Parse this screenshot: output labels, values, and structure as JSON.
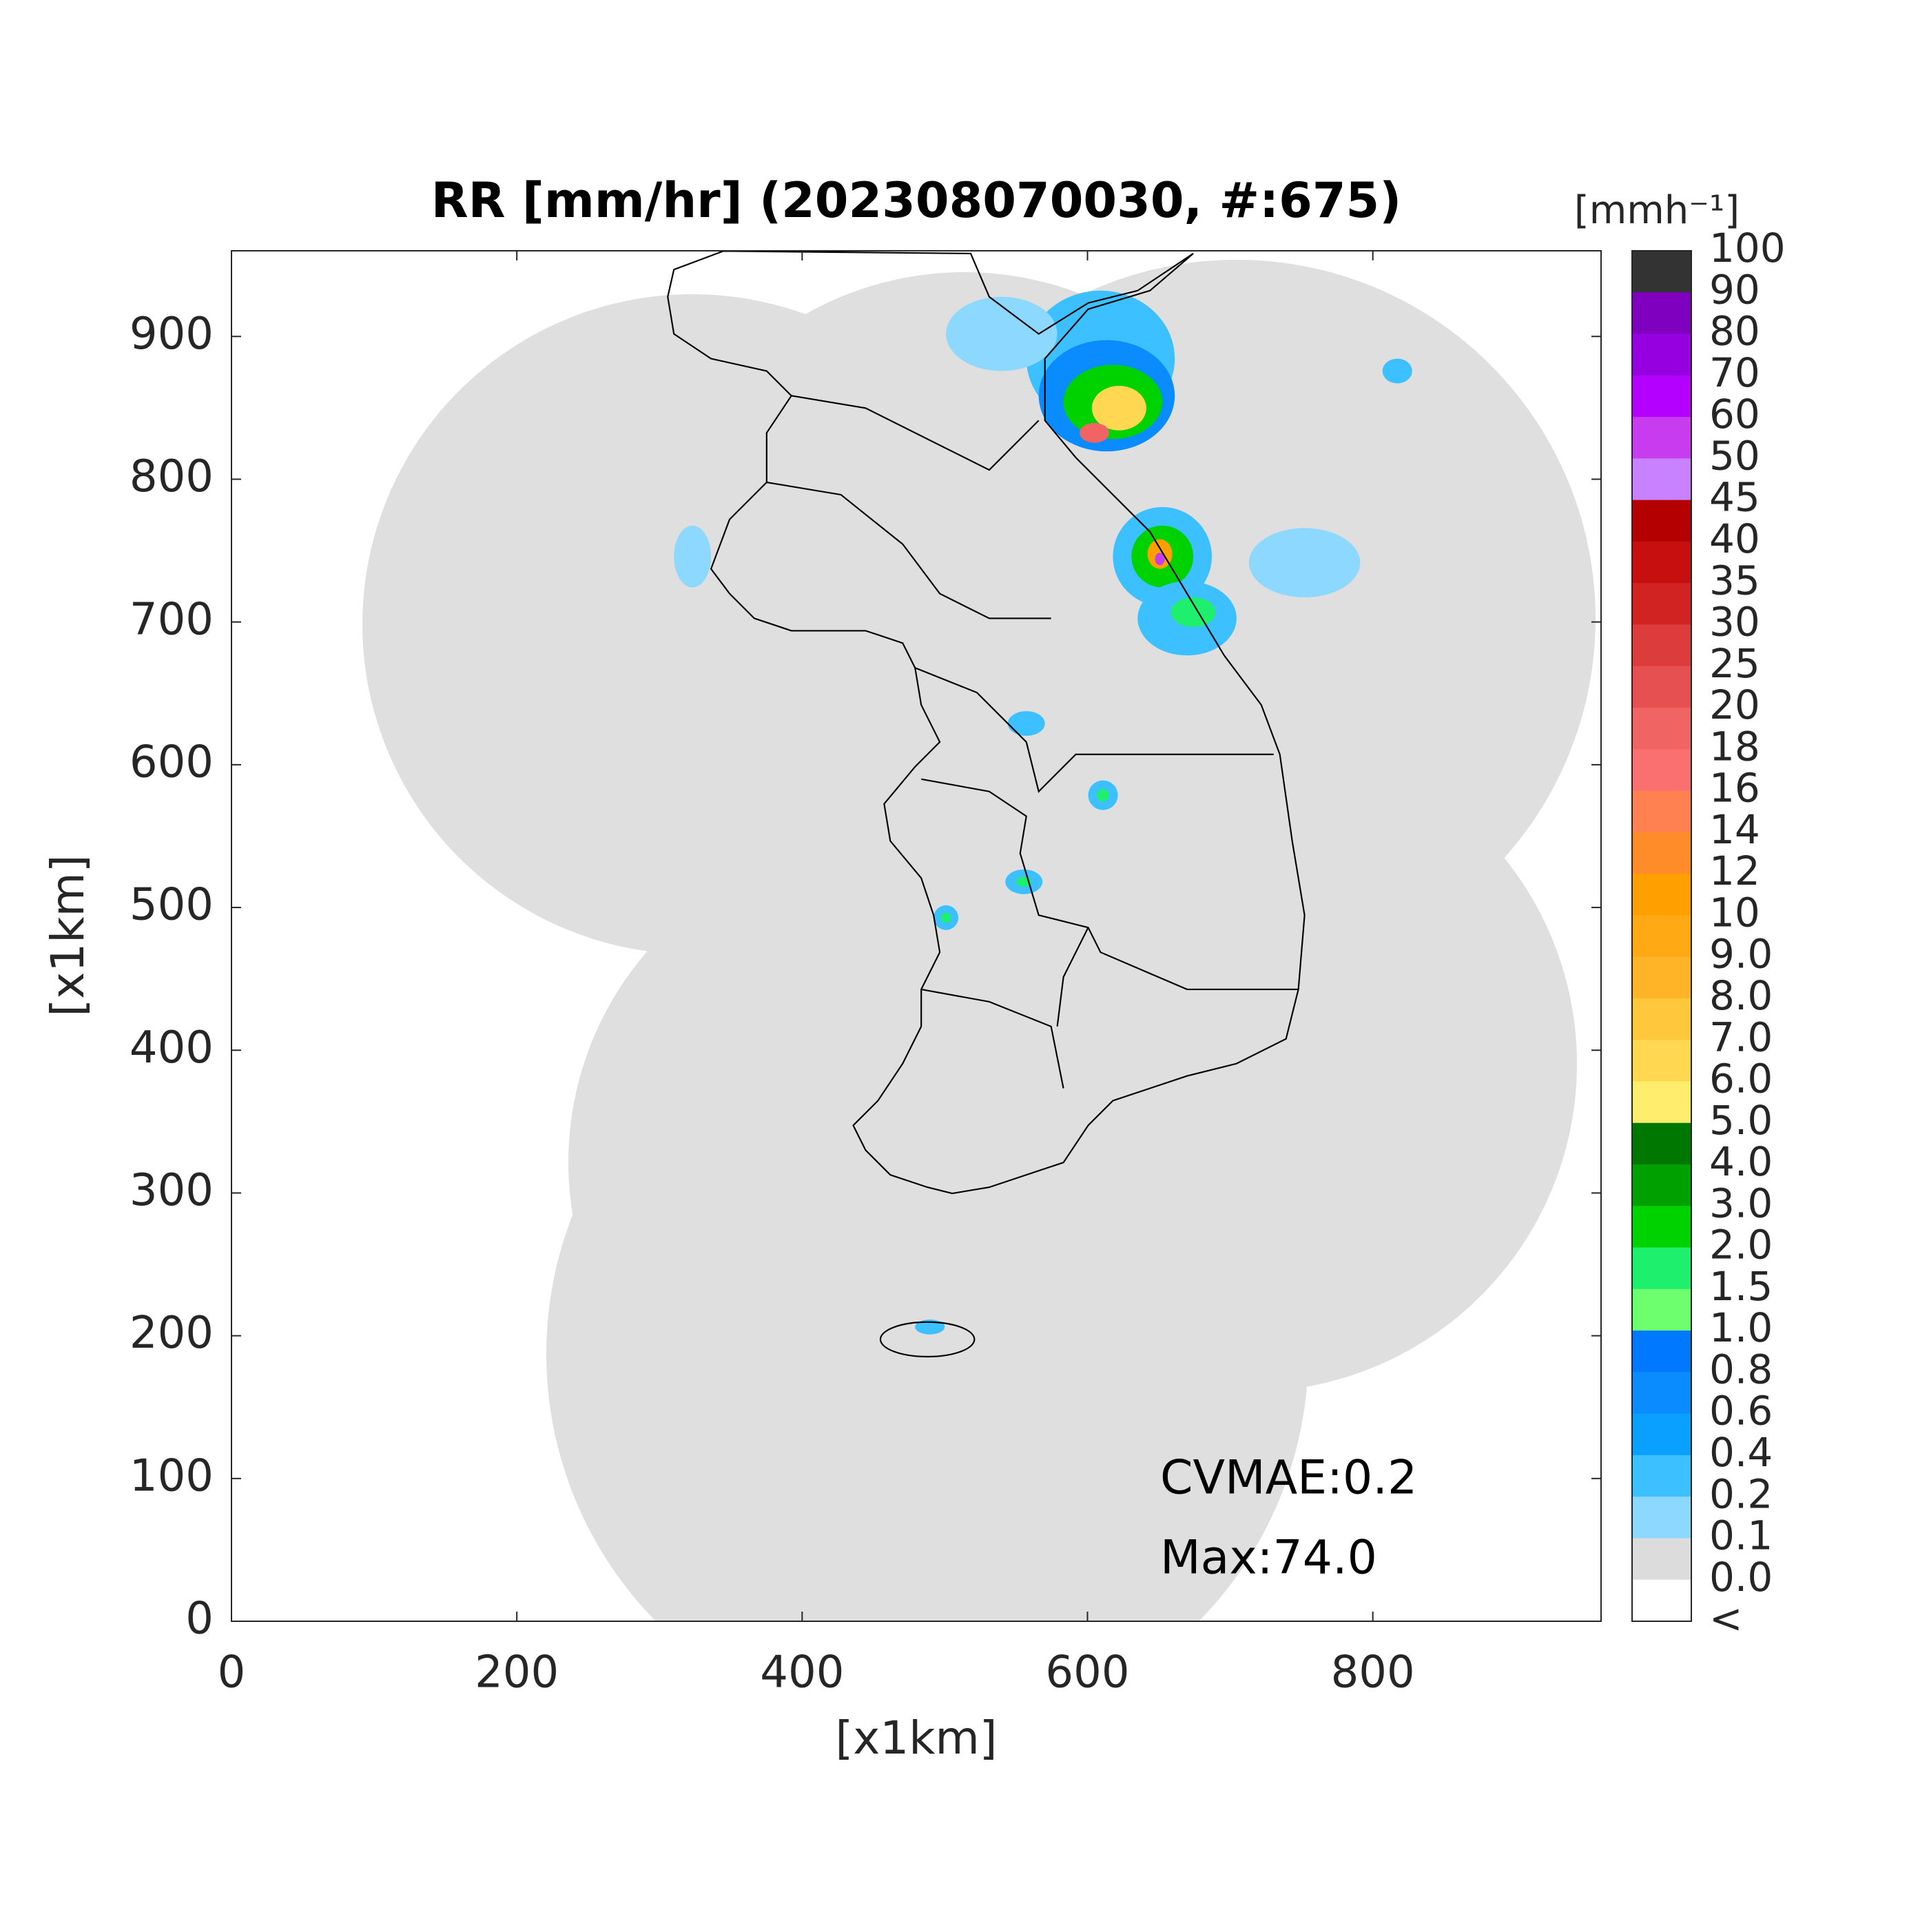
{
  "chart_data": {
    "type": "map",
    "title": "RR [mm/hr] (202308070030, #:675)",
    "xlabel": "[x1km]",
    "ylabel": "[x1km]",
    "xlim": [
      0,
      960
    ],
    "ylim": [
      0,
      960
    ],
    "xticks": [
      0,
      200,
      400,
      600,
      800
    ],
    "yticks": [
      0,
      100,
      200,
      300,
      400,
      500,
      600,
      700,
      800,
      900
    ],
    "annotations": [
      "CVMAE:0.2",
      "Max:74.0"
    ],
    "colorbar": {
      "title": "[mmh⁻¹]",
      "labels": [
        "100",
        "90",
        "80",
        "70",
        "60",
        "50",
        "45",
        "40",
        "35",
        "30",
        "25",
        "20",
        "18",
        "16",
        "14",
        "12",
        "10",
        "9.0",
        "8.0",
        "7.0",
        "6.0",
        "5.0",
        "4.0",
        "3.0",
        "2.0",
        "1.5",
        "1.0",
        "0.8",
        "0.6",
        "0.4",
        "0.2",
        "0.1",
        "0.0",
        "<"
      ],
      "colors": [
        "#333333",
        "#7f00bf",
        "#9600e0",
        "#b400ff",
        "#c83cf0",
        "#c882ff",
        "#b40000",
        "#c80f0f",
        "#d22323",
        "#dc3c3c",
        "#e65050",
        "#f06464",
        "#fa7070",
        "#ff8050",
        "#ff8c28",
        "#ffa000",
        "#ffaa14",
        "#ffb428",
        "#ffc83c",
        "#ffd750",
        "#ffee6e",
        "#007800",
        "#00a000",
        "#00d200",
        "#1ef06e",
        "#6eff6e",
        "#0078ff",
        "#0a8cff",
        "#0aa0ff",
        "#3cc0ff",
        "#8cd8ff",
        "#dcdcdc",
        "#ffffff"
      ]
    }
  }
}
